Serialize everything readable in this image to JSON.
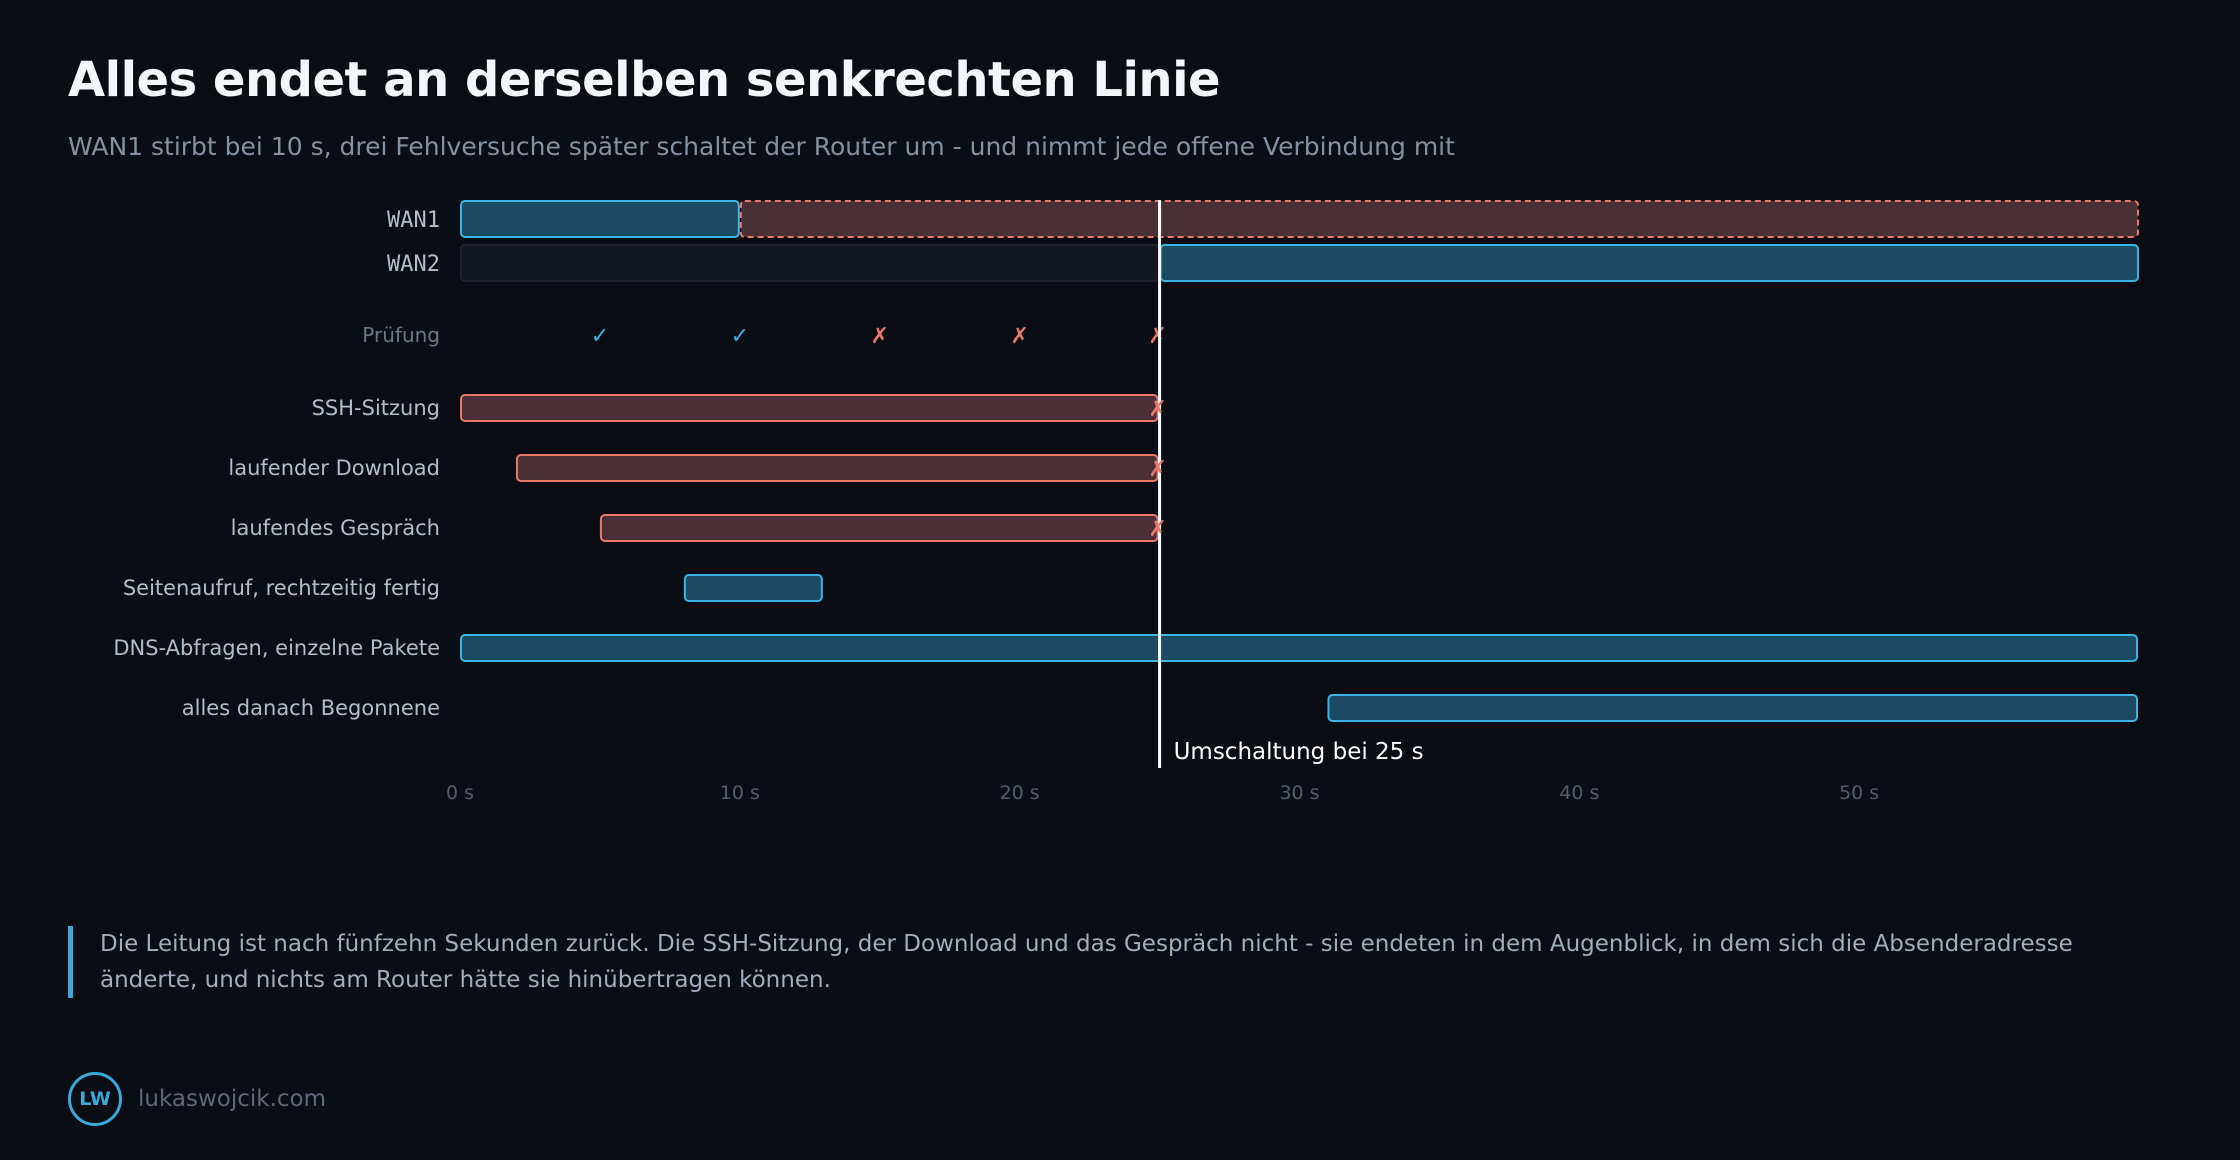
{
  "title": "Alles endet an derselben senkrechten Linie",
  "subtitle": "WAN1 stirbt bei 10 s, drei Fehlversuche später schaltet der Router um - und nimmt jede offene Verbindung mit",
  "chart_data": {
    "type": "timeline",
    "x_unit": "s",
    "xlim": [
      0,
      60
    ],
    "x_ticks": [
      0,
      10,
      20,
      30,
      40,
      50
    ],
    "x_tick_labels": [
      "0 s",
      "10 s",
      "20 s",
      "30 s",
      "40 s",
      "50 s"
    ],
    "links": [
      {
        "label": "WAN1",
        "segments": [
          {
            "start": 0,
            "end": 10,
            "state": "up"
          },
          {
            "start": 10,
            "end": 60,
            "state": "down"
          }
        ]
      },
      {
        "label": "WAN2",
        "segments": [
          {
            "start": 0,
            "end": 25,
            "state": "idle"
          },
          {
            "start": 25,
            "end": 60,
            "state": "active"
          }
        ]
      }
    ],
    "checks": {
      "label": "Prüfung",
      "items": [
        {
          "t": 5,
          "result": "ok",
          "glyph": "✓"
        },
        {
          "t": 10,
          "result": "ok",
          "glyph": "✓"
        },
        {
          "t": 15,
          "result": "fail",
          "glyph": "✗"
        },
        {
          "t": 20,
          "result": "fail",
          "glyph": "✗"
        },
        {
          "t": 25,
          "result": "fail",
          "glyph": "✗"
        }
      ]
    },
    "connections": [
      {
        "label": "SSH-Sitzung",
        "start": 0,
        "end": 25,
        "state": "killed"
      },
      {
        "label": "laufender Download",
        "start": 2,
        "end": 25,
        "state": "killed"
      },
      {
        "label": "laufendes Gespräch",
        "start": 5,
        "end": 25,
        "state": "killed"
      },
      {
        "label": "Seitenaufruf, rechtzeitig fertig",
        "start": 8,
        "end": 13,
        "state": "ok"
      },
      {
        "label": "DNS-Abfragen, einzelne Pakete",
        "start": 0,
        "end": 60,
        "state": "ok"
      },
      {
        "label": "alles danach Begonnene",
        "start": 31,
        "end": 60,
        "state": "ok"
      }
    ],
    "kill_glyph": "✗",
    "switchover": {
      "t": 25,
      "label": "Umschaltung bei 25 s"
    }
  },
  "note": "Die Leitung ist nach fünfzehn Sekunden zurück. Die SSH-Sitzung, der Download und das Gespräch nicht - sie endeten in dem Augenblick, in dem sich die Absenderadresse änderte, und nichts am Router hätte sie hinübertragen können.",
  "footer": {
    "logo_text": "LW",
    "site": "lukaswojcik.com"
  },
  "colors": {
    "background": "#0a0d14",
    "ok_fill": "#1d4a63",
    "ok_stroke": "#3ab5e6",
    "fail_fill": "#4a2f34",
    "fail_stroke": "#e8796b",
    "idle_fill": "#121720",
    "idle_stroke": "#1e2430",
    "check_ok": "#3ab5e6",
    "check_fail": "#e8796b",
    "switch_line": "#ffffff"
  }
}
